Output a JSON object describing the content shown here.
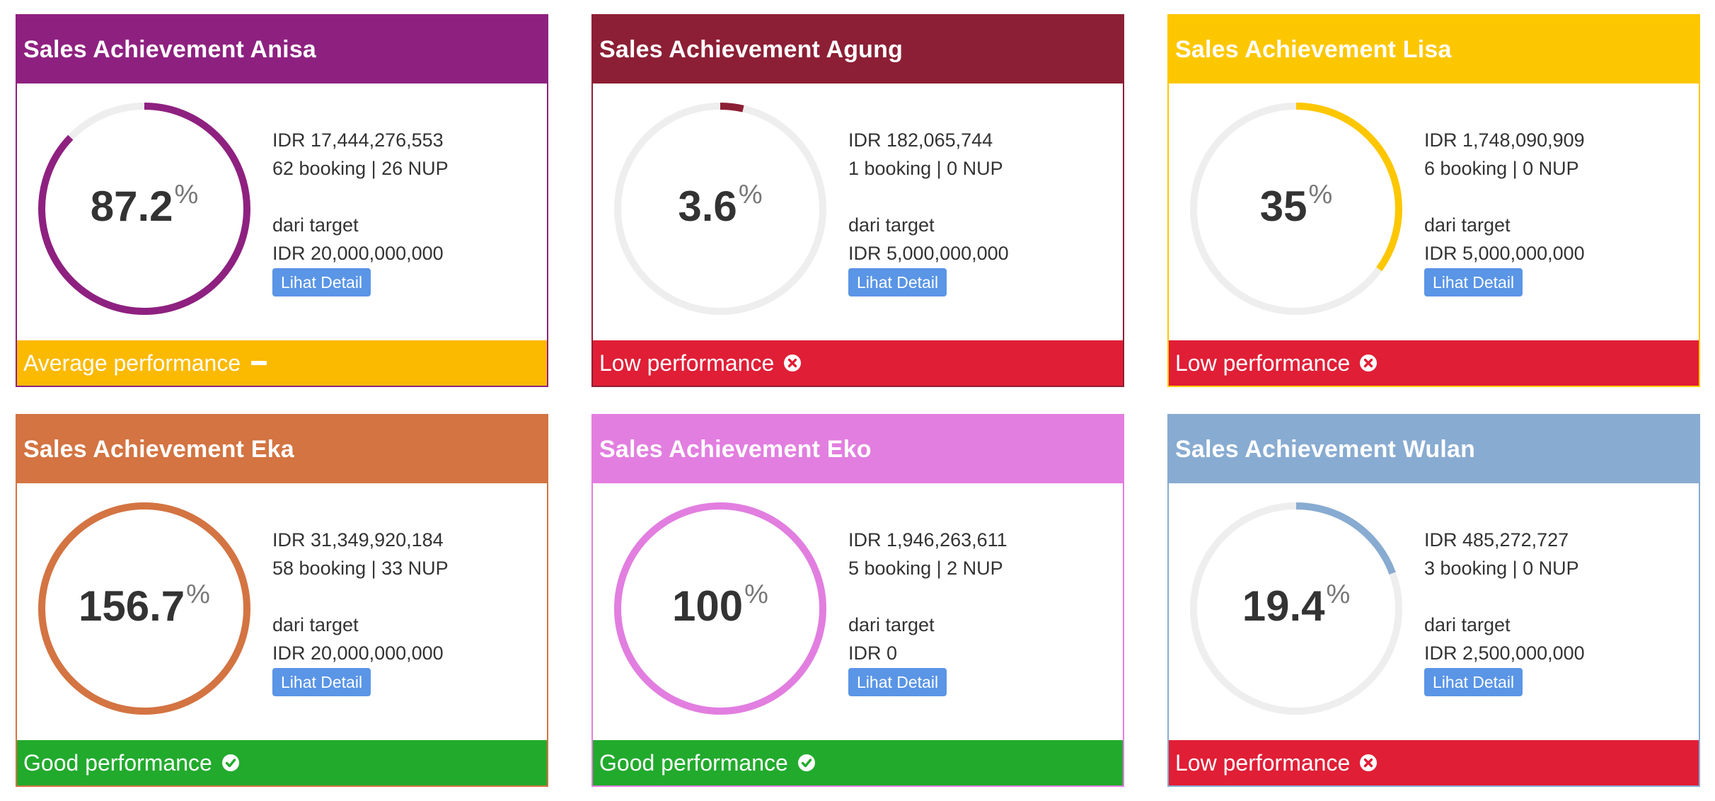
{
  "cards": [
    {
      "title": "Sales Achievement Anisa",
      "header_color": "#8e2180",
      "gauge_color": "#8e2180",
      "percent_value": "87.2",
      "percent_symbol": "%",
      "progress_fraction": 0.872,
      "amount": "IDR 17,444,276,553",
      "bookings": "62 booking | 26 NUP",
      "target_label": "dari target",
      "target_amount": "IDR 20,000,000,000",
      "detail_label": "Lihat Detail",
      "status_label": "Average performance",
      "status_color": "#fbb900",
      "status_icon": "minus-icon"
    },
    {
      "title": "Sales Achievement Agung",
      "header_color": "#8c1f35",
      "gauge_color": "#8c1f35",
      "percent_value": "3.6",
      "percent_symbol": "%",
      "progress_fraction": 0.036,
      "amount": "IDR 182,065,744",
      "bookings": "1 booking | 0 NUP",
      "target_label": "dari target",
      "target_amount": "IDR 5,000,000,000",
      "detail_label": "Lihat Detail",
      "status_label": "Low performance",
      "status_color": "#e01e36",
      "status_icon": "times-circle-icon"
    },
    {
      "title": "Sales Achievement Lisa",
      "header_color": "#fdc700",
      "gauge_color": "#fdc700",
      "percent_value": "35",
      "percent_symbol": "%",
      "progress_fraction": 0.35,
      "amount": "IDR 1,748,090,909",
      "bookings": "6 booking | 0 NUP",
      "target_label": "dari target",
      "target_amount": "IDR 5,000,000,000",
      "detail_label": "Lihat Detail",
      "status_label": "Low performance",
      "status_color": "#e01e36",
      "status_icon": "times-circle-icon"
    },
    {
      "title": "Sales Achievement Eka",
      "header_color": "#d37442",
      "gauge_color": "#d37442",
      "percent_value": "156.7",
      "percent_symbol": "%",
      "progress_fraction": 1.0,
      "amount": "IDR 31,349,920,184",
      "bookings": "58 booking | 33 NUP",
      "target_label": "dari target",
      "target_amount": "IDR 20,000,000,000",
      "detail_label": "Lihat Detail",
      "status_label": "Good performance",
      "status_color": "#22aa2d",
      "status_icon": "check-circle-icon"
    },
    {
      "title": "Sales Achievement Eko",
      "header_color": "#e27ee0",
      "gauge_color": "#e27ee0",
      "percent_value": "100",
      "percent_symbol": "%",
      "progress_fraction": 1.0,
      "amount": "IDR 1,946,263,611",
      "bookings": "5 booking | 2 NUP",
      "target_label": "dari target",
      "target_amount": "IDR 0",
      "detail_label": "Lihat Detail",
      "status_label": "Good performance",
      "status_color": "#22aa2d",
      "status_icon": "check-circle-icon"
    },
    {
      "title": "Sales Achievement Wulan",
      "header_color": "#88abd1",
      "gauge_color": "#88abd1",
      "percent_value": "19.4",
      "percent_symbol": "%",
      "progress_fraction": 0.194,
      "amount": "IDR 485,272,727",
      "bookings": "3 booking | 0 NUP",
      "target_label": "dari target",
      "target_amount": "IDR 2,500,000,000",
      "detail_label": "Lihat Detail",
      "status_label": "Low performance",
      "status_color": "#e01e36",
      "status_icon": "times-circle-icon"
    }
  ]
}
